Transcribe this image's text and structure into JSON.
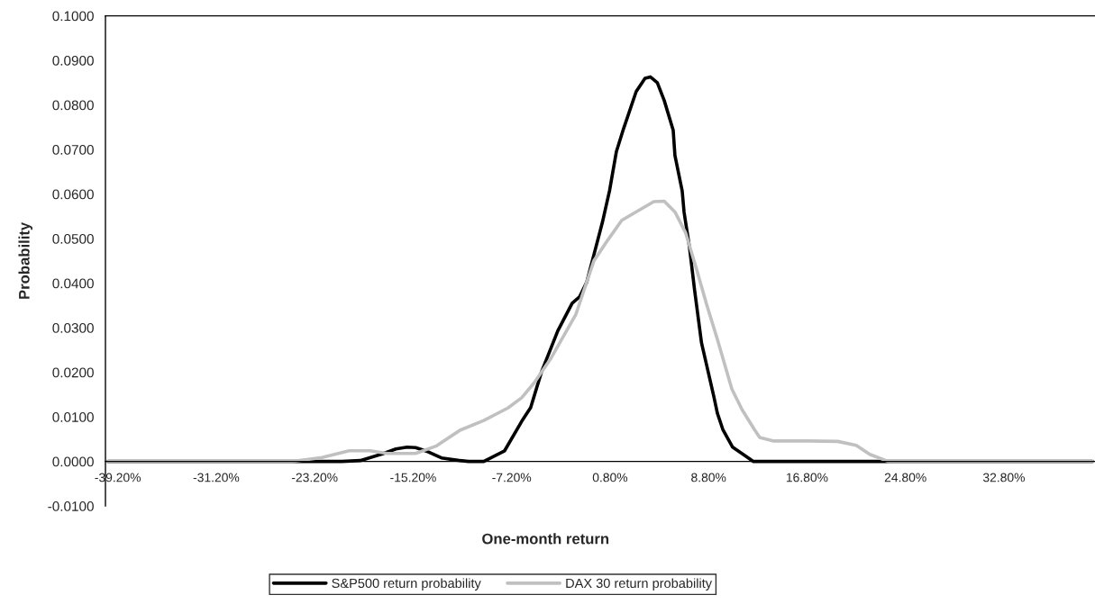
{
  "chart_data": {
    "type": "line",
    "xlabel": "One-month return",
    "ylabel": "Probability",
    "xlim": [
      -40.2,
      40.2
    ],
    "ylim": [
      -0.01,
      0.1
    ],
    "xticks": [
      {
        "value": -39.2,
        "label": "-39.20%"
      },
      {
        "value": -31.2,
        "label": "-31.20%"
      },
      {
        "value": -23.2,
        "label": "-23.20%"
      },
      {
        "value": -15.2,
        "label": "-15.20%"
      },
      {
        "value": -7.2,
        "label": "-7.20%"
      },
      {
        "value": 0.8,
        "label": "0.80%"
      },
      {
        "value": 8.8,
        "label": "8.80%"
      },
      {
        "value": 16.8,
        "label": "16.80%"
      },
      {
        "value": 24.8,
        "label": "24.80%"
      },
      {
        "value": 32.8,
        "label": "32.80%"
      }
    ],
    "yticks": [
      {
        "value": -0.01,
        "label": "-0.0100"
      },
      {
        "value": 0,
        "label": "0.0000"
      },
      {
        "value": 0.01,
        "label": "0.0100"
      },
      {
        "value": 0.02,
        "label": "0.0200"
      },
      {
        "value": 0.03,
        "label": "0.0300"
      },
      {
        "value": 0.04,
        "label": "0.0400"
      },
      {
        "value": 0.05,
        "label": "0.0500"
      },
      {
        "value": 0.06,
        "label": "0.0600"
      },
      {
        "value": 0.07,
        "label": "0.0700"
      },
      {
        "value": 0.08,
        "label": "0.0800"
      },
      {
        "value": 0.09,
        "label": "0.0900"
      },
      {
        "value": 0.1,
        "label": "0.1000"
      }
    ],
    "grid": false,
    "legend": "bottom",
    "marker": "none",
    "line_style": "solid",
    "series": [
      {
        "name": "S&P500 return probability",
        "color": "#000000",
        "x": [
          -40,
          -24,
          -21,
          -19.5,
          -17.7,
          -16.6,
          -15.7,
          -15,
          -14,
          -12.9,
          -11.4,
          -10.7,
          -9.46,
          -7.77,
          -6.38,
          -5.65,
          -4.77,
          -3.45,
          -2.28,
          -1.69,
          -1.1,
          0.18,
          0.76,
          1.31,
          1.9,
          2.92,
          3.64,
          4.07,
          4.64,
          5.2,
          5.93,
          6.07,
          6.66,
          6.81,
          7.25,
          7.66,
          8.23,
          9.22,
          9.52,
          9.96,
          10.76,
          12.45,
          40
        ],
        "values": [
          0,
          0,
          0,
          0.0002,
          0.0017,
          0.0028,
          0.0032,
          0.0031,
          0.0022,
          0.0008,
          0.0002,
          0,
          0,
          0.0024,
          0.009,
          0.0121,
          0.0201,
          0.0293,
          0.0355,
          0.0369,
          0.0402,
          0.0537,
          0.0608,
          0.0695,
          0.0747,
          0.083,
          0.086,
          0.0863,
          0.085,
          0.081,
          0.0743,
          0.0687,
          0.0607,
          0.056,
          0.0481,
          0.0386,
          0.0266,
          0.0147,
          0.0108,
          0.0072,
          0.0032,
          0,
          0
        ]
      },
      {
        "name": "DAX 30 return probability",
        "color": "#c0c0c0",
        "x": [
          -40,
          -25,
          -22.6,
          -20.4,
          -18.7,
          -17.3,
          -15.0,
          -13.3,
          -11.4,
          -9.46,
          -7.5,
          -6.38,
          -5.35,
          -4.04,
          -1.98,
          -0.52,
          0.62,
          1.75,
          3.22,
          4.35,
          5.2,
          6.07,
          6.94,
          7.8,
          8.64,
          9.52,
          10.69,
          11.53,
          12.52,
          12.96,
          14.1,
          16.9,
          19.3,
          20.8,
          21.9,
          23.4,
          40
        ],
        "values": [
          0,
          0,
          0.0009,
          0.0024,
          0.0024,
          0.0018,
          0.0018,
          0.0035,
          0.007,
          0.0092,
          0.012,
          0.0143,
          0.0177,
          0.023,
          0.033,
          0.045,
          0.0497,
          0.0541,
          0.0565,
          0.0583,
          0.0584,
          0.056,
          0.0513,
          0.0434,
          0.0353,
          0.0274,
          0.0163,
          0.0116,
          0.0072,
          0.0054,
          0.0046,
          0.0046,
          0.0045,
          0.0036,
          0.0016,
          0,
          0
        ]
      }
    ]
  }
}
